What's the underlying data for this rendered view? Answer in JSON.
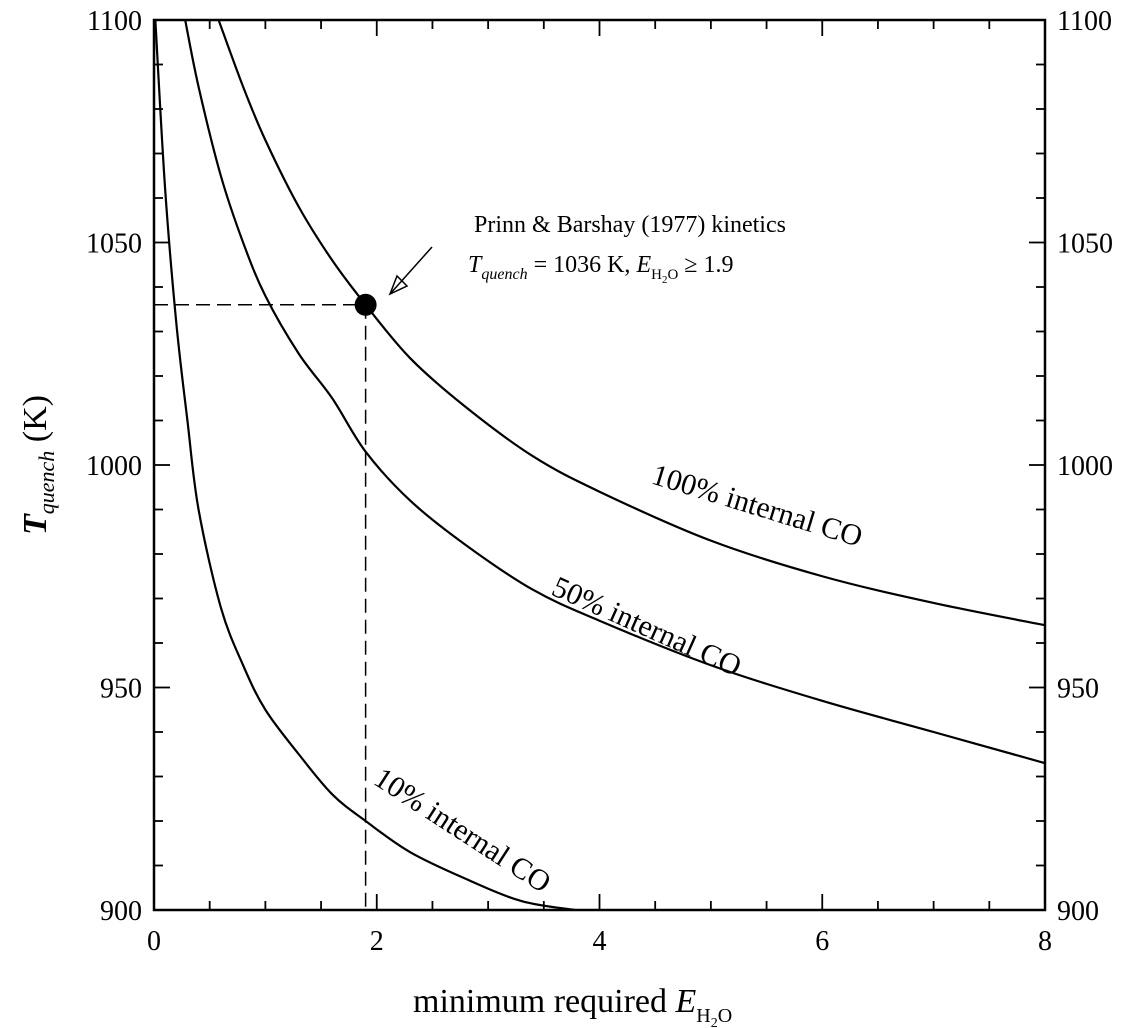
{
  "chart_data": {
    "type": "line",
    "xlabel": {
      "text": "minimum required ",
      "italic_var": "E",
      "sub": "H",
      "sub2": "2",
      "sub3": "O"
    },
    "ylabel": {
      "italic_var": "T",
      "sub": "quench",
      "unit": " (K)"
    },
    "xlim": [
      0,
      8
    ],
    "ylim": [
      900,
      1100
    ],
    "x_ticks": [
      0,
      2,
      4,
      6,
      8
    ],
    "x_tick_labels": [
      "0",
      "2",
      "4",
      "6",
      "8"
    ],
    "y_ticks": [
      900,
      950,
      1000,
      1050,
      1100
    ],
    "y_tick_labels": [
      "900",
      "950",
      "1000",
      "1050",
      "1100"
    ],
    "y_ticks_right_labels": [
      "900",
      "950",
      "1000",
      "1050",
      "1100"
    ],
    "grid": false,
    "series": [
      {
        "name": "10% internal CO",
        "label": "10% internal CO",
        "points": [
          [
            0.012,
            1100
          ],
          [
            0.1,
            1062
          ],
          [
            0.2,
            1032
          ],
          [
            0.3,
            1010
          ],
          [
            0.4,
            990
          ],
          [
            0.6,
            968
          ],
          [
            0.8,
            955
          ],
          [
            1.0,
            945
          ],
          [
            1.3,
            935
          ],
          [
            1.6,
            926
          ],
          [
            1.9,
            920
          ],
          [
            2.3,
            913
          ],
          [
            2.8,
            907
          ],
          [
            3.3,
            902
          ],
          [
            3.78,
            900
          ]
        ]
      },
      {
        "name": "50% internal CO",
        "label": "50% internal CO",
        "points": [
          [
            0.28,
            1100
          ],
          [
            0.4,
            1085
          ],
          [
            0.6,
            1065
          ],
          [
            0.8,
            1050
          ],
          [
            1.0,
            1038
          ],
          [
            1.3,
            1025
          ],
          [
            1.6,
            1015
          ],
          [
            1.9,
            1003
          ],
          [
            2.3,
            992
          ],
          [
            2.8,
            982
          ],
          [
            3.4,
            972
          ],
          [
            4.0,
            965
          ],
          [
            5.0,
            955
          ],
          [
            6.0,
            947
          ],
          [
            7.0,
            940
          ],
          [
            8.0,
            933
          ]
        ]
      },
      {
        "name": "100% internal CO",
        "label": "100% internal CO",
        "points": [
          [
            0.58,
            1100
          ],
          [
            0.8,
            1085
          ],
          [
            1.0,
            1073
          ],
          [
            1.3,
            1058
          ],
          [
            1.6,
            1046
          ],
          [
            1.9,
            1036
          ],
          [
            2.3,
            1024
          ],
          [
            2.8,
            1013
          ],
          [
            3.4,
            1002
          ],
          [
            4.0,
            994
          ],
          [
            5.0,
            983
          ],
          [
            6.0,
            975
          ],
          [
            7.0,
            969
          ],
          [
            8.0,
            964
          ]
        ]
      }
    ],
    "highlight_point": {
      "x": 1.9,
      "y": 1036
    },
    "reference_lines": {
      "x": 1.9,
      "y": 1036
    },
    "annotation": {
      "line1": "Prinn & Barshay (1977) kinetics",
      "t_var": "T",
      "t_sub": "quench",
      "eq_mid": " = 1036 K, ",
      "e_var": "E",
      "e_sub_h": "H",
      "e_sub_2": "2",
      "e_sub_o": "O",
      "eq_end": " ≥ 1.9"
    }
  }
}
